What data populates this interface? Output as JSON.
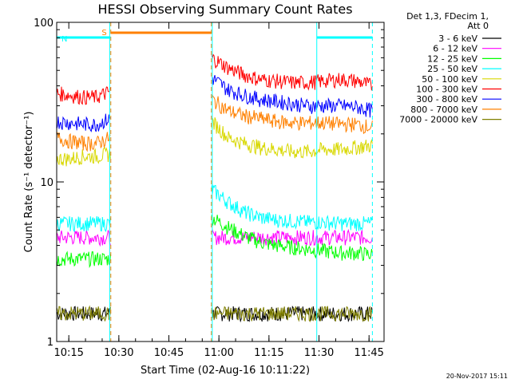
{
  "chart_data": {
    "type": "line",
    "title": "HESSI Observing Summary Count Rates",
    "xlabel": "Start Time (02-Aug-16 10:11:22)",
    "ylabel": "Count Rate (s⁻¹ detector⁻¹)",
    "y_scale": "log",
    "ylim": [
      1,
      100
    ],
    "xlim": [
      "10:11:22",
      "11:49:30"
    ],
    "x_ticks": [
      "10:15",
      "10:30",
      "10:45",
      "11:00",
      "11:15",
      "11:30",
      "11:45"
    ],
    "y_ticks": [
      "1",
      "10",
      "100"
    ],
    "legend": {
      "header": [
        "Det 1,3, FDecim 1,",
        "Att 0"
      ],
      "position": "right",
      "entries": [
        {
          "label": "3 - 6 keV",
          "color": "#000000"
        },
        {
          "label": "6 - 12 keV",
          "color": "#ff00ff"
        },
        {
          "label": "12 - 25 keV",
          "color": "#00ff00"
        },
        {
          "label": "25 - 50 keV",
          "color": "#00ffff"
        },
        {
          "label": "50 - 100 keV",
          "color": "#d8d800"
        },
        {
          "label": "100 - 300 keV",
          "color": "#ff0000"
        },
        {
          "label": "300 - 800 keV",
          "color": "#0000ff"
        },
        {
          "label": "800 - 7000 keV",
          "color": "#ff8000"
        },
        {
          "label": "7000 - 20000 keV",
          "color": "#808000"
        }
      ]
    },
    "series": [
      {
        "name": "3 - 6 keV",
        "color": "#000000",
        "segments": [
          {
            "start": "10:11:22",
            "end": "10:27:30",
            "values": [
              1.5,
              1.5
            ]
          },
          {
            "start": "10:57:50",
            "end": "11:46:00",
            "values": [
              1.5,
              1.5
            ]
          }
        ]
      },
      {
        "name": "6 - 12 keV",
        "color": "#ff00ff",
        "segments": [
          {
            "start": "10:11:22",
            "end": "10:27:30",
            "values": [
              4.5,
              4.5
            ]
          },
          {
            "start": "10:57:50",
            "end": "11:46:00",
            "values": [
              4.5,
              4.5
            ]
          }
        ]
      },
      {
        "name": "12 - 25 keV",
        "color": "#00ff00",
        "segments": [
          {
            "start": "10:11:22",
            "end": "10:27:30",
            "values": [
              3.3,
              3.3
            ]
          },
          {
            "start": "10:57:50",
            "end": "11:46:00",
            "values": [
              6.0,
              5.2,
              4.6,
              4.2,
              4.0,
              3.9,
              3.8,
              3.7,
              3.6,
              3.6,
              3.5
            ]
          }
        ]
      },
      {
        "name": "25 - 50 keV",
        "color": "#00ffff",
        "segments": [
          {
            "start": "10:11:22",
            "end": "10:27:30",
            "values": [
              5.5,
              5.5
            ]
          },
          {
            "start": "10:57:50",
            "end": "11:46:00",
            "values": [
              9.0,
              7.5,
              6.5,
              6.0,
              5.8,
              5.7,
              5.6,
              5.6,
              5.5,
              5.5,
              5.5
            ]
          }
        ]
      },
      {
        "name": "50 - 100 keV",
        "color": "#d8d800",
        "segments": [
          {
            "start": "10:11:22",
            "end": "10:27:30",
            "values": [
              14,
              14,
              14.5,
              14.5,
              15
            ]
          },
          {
            "start": "10:57:50",
            "end": "11:46:00",
            "values": [
              24,
              19,
              17.5,
              16.5,
              16,
              15.5,
              15.5,
              16,
              16,
              16.5,
              17
            ]
          }
        ]
      },
      {
        "name": "100 - 300 keV",
        "color": "#ff0000",
        "segments": [
          {
            "start": "10:11:22",
            "end": "10:27:30",
            "values": [
              36,
              35,
              34,
              34,
              37
            ]
          },
          {
            "start": "10:57:50",
            "end": "11:46:00",
            "values": [
              60,
              52,
              47,
              44,
              43,
              42,
              42,
              43,
              44,
              43,
              40
            ]
          }
        ]
      },
      {
        "name": "300 - 800 keV",
        "color": "#0000ff",
        "segments": [
          {
            "start": "10:11:22",
            "end": "10:27:30",
            "values": [
              24,
              23.5,
              23,
              23,
              25
            ]
          },
          {
            "start": "10:57:50",
            "end": "11:46:00",
            "values": [
              45,
              38,
              35,
              33,
              32,
              31,
              30,
              30,
              30,
              29.5,
              28
            ]
          }
        ]
      },
      {
        "name": "800 - 7000 keV",
        "color": "#ff8000",
        "segments": [
          {
            "start": "10:11:22",
            "end": "10:27:30",
            "values": [
              19,
              18,
              17.5,
              17.5,
              19
            ]
          },
          {
            "start": "10:57:50",
            "end": "11:46:00",
            "values": [
              33,
              28,
              26,
              25,
              24,
              23.5,
              23.5,
              23.5,
              23,
              23,
              22
            ]
          }
        ]
      },
      {
        "name": "7000 - 20000 keV",
        "color": "#808000",
        "segments": [
          {
            "start": "10:11:22",
            "end": "10:27:30",
            "values": [
              1.5,
              1.5
            ]
          },
          {
            "start": "10:57:50",
            "end": "11:46:00",
            "values": [
              1.5,
              1.5
            ]
          }
        ]
      }
    ],
    "flags": [
      {
        "label": "S",
        "color": "#ff8000",
        "start": "10:27:30",
        "end": "10:57:50"
      },
      {
        "label": "N",
        "color": "#00ffff",
        "start": "10:11:22",
        "end": "10:27:30"
      },
      {
        "label": "",
        "color": "#00ffff",
        "start": "11:29:20",
        "end": "11:46:00"
      }
    ],
    "markers": [
      {
        "time": "10:27:15",
        "color": "#00ffff",
        "style": "solid"
      },
      {
        "time": "10:27:35",
        "color": "#ff8000",
        "style": "dashed"
      },
      {
        "time": "10:57:45",
        "color": "#ff8000",
        "style": "dashed"
      },
      {
        "time": "10:58:00",
        "color": "#00ffff",
        "style": "solid"
      },
      {
        "time": "11:29:20",
        "color": "#00ffff",
        "style": "solid"
      },
      {
        "time": "11:46:00",
        "color": "#00ffff",
        "style": "dashed"
      }
    ],
    "grid": false
  },
  "footer": {
    "timestamp": "20-Nov-2017 15:11"
  }
}
